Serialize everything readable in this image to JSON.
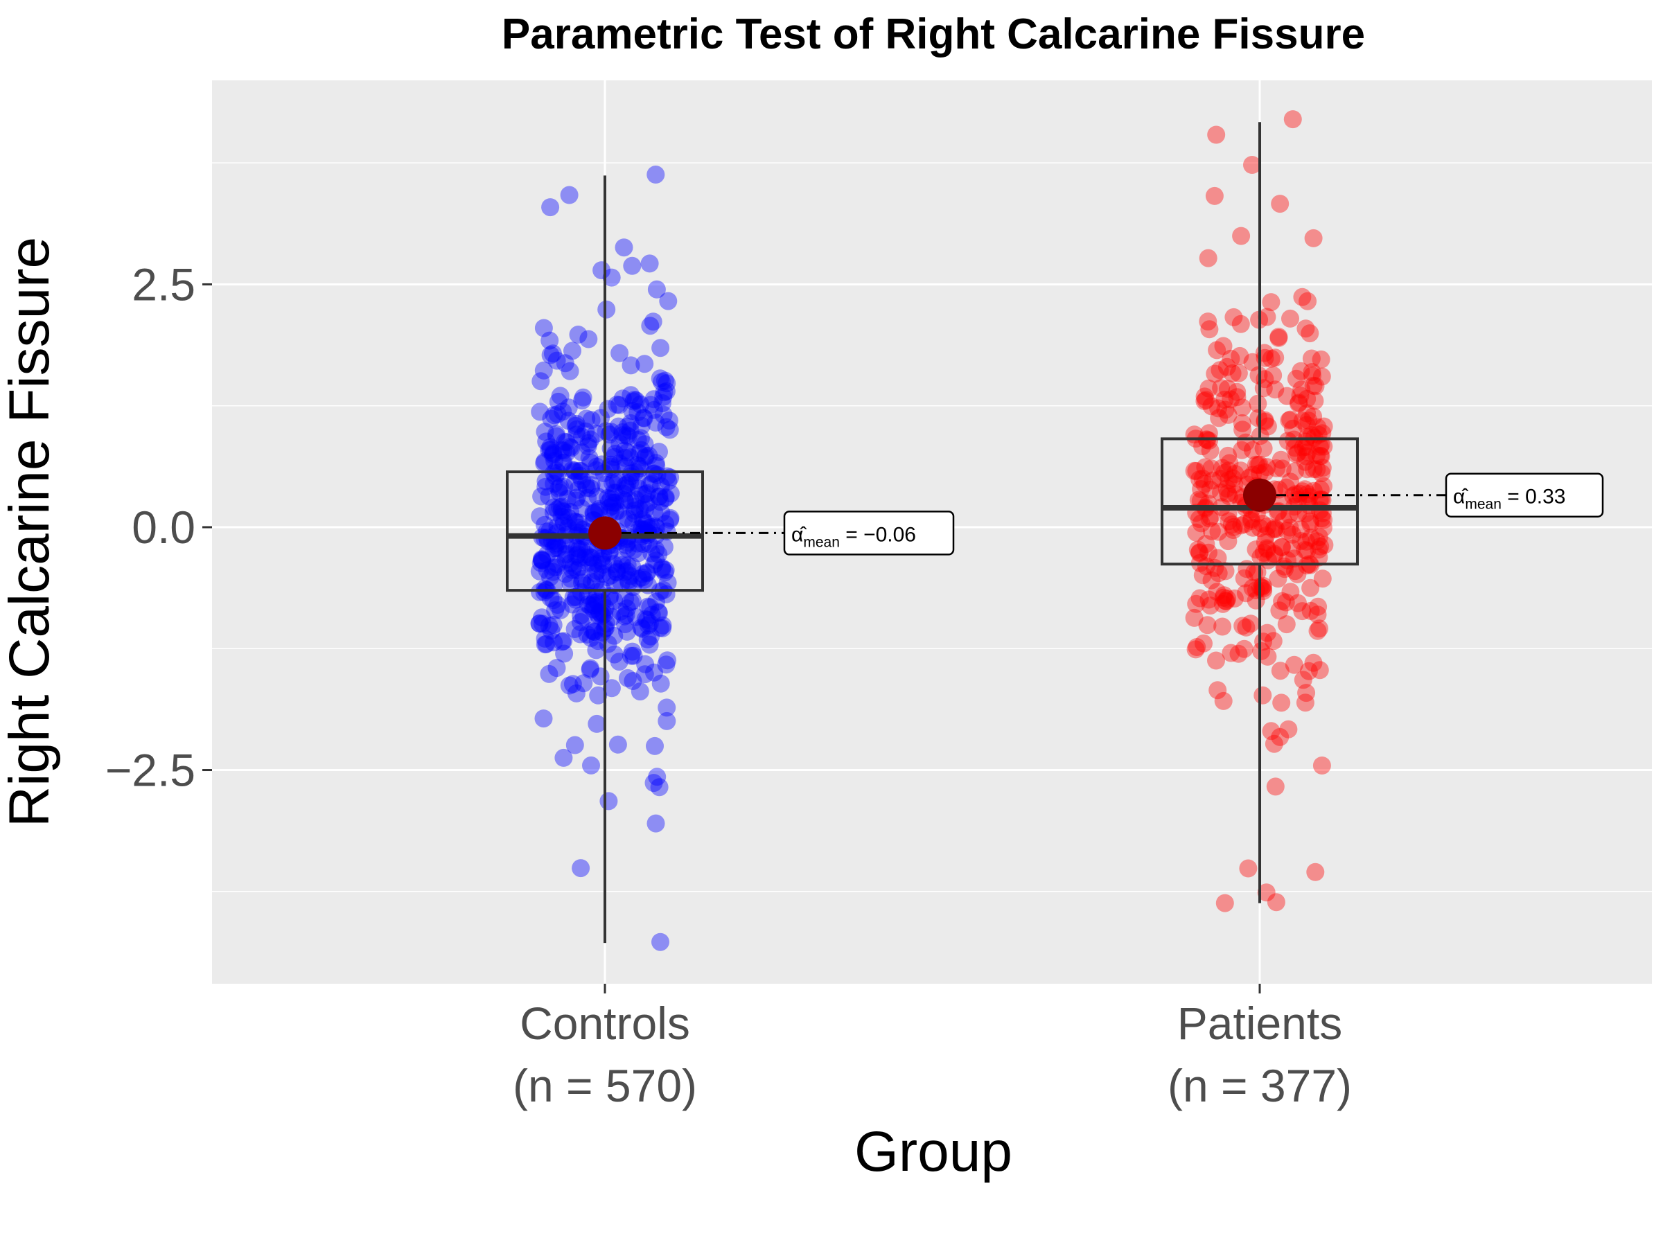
{
  "chart_data": {
    "type": "box",
    "title": "Parametric Test of Right Calcarine Fissure",
    "xlabel": "Group",
    "ylabel": "Right Calcarine Fissure",
    "ylim": [
      -4.7,
      4.6
    ],
    "yticks": [
      -2.5,
      0.0,
      2.5
    ],
    "y_tick_labels": [
      "−2.5",
      "0.0",
      "2.5"
    ],
    "grid": true,
    "legend": "none",
    "categories": [
      "Controls",
      "Patients"
    ],
    "category_labels": [
      {
        "name": "Controls",
        "n": "(n = 570)"
      },
      {
        "name": "Patients",
        "n": "(n = 377)"
      }
    ],
    "boxes": [
      {
        "group": "Controls",
        "n": 570,
        "whisker_low": -4.28,
        "q1": -0.65,
        "median": -0.09,
        "q3": 0.57,
        "whisker_high": 3.62,
        "mean": -0.06,
        "mean_label": "−−0.06",
        "mean_label_value": "−0.06",
        "color": "#0000ff"
      },
      {
        "group": "Patients",
        "n": 377,
        "whisker_low": -3.87,
        "q1": -0.38,
        "median": 0.2,
        "q3": 0.91,
        "whisker_high": 4.17,
        "mean": 0.33,
        "mean_label_value": "0.33",
        "color": "#ff0000"
      }
    ],
    "mean_label_prefix": "α̂",
    "mean_label_sub": "mean",
    "outliers_shown": [
      {
        "group": "Controls",
        "y": 3.63
      },
      {
        "group": "Controls",
        "y": 3.42
      },
      {
        "group": "Controls",
        "y": 2.88
      },
      {
        "group": "Controls",
        "y": 2.69
      },
      {
        "group": "Controls",
        "y": 2.57
      },
      {
        "group": "Controls",
        "y": -2.57
      },
      {
        "group": "Controls",
        "y": -2.82
      },
      {
        "group": "Controls",
        "y": -3.05
      },
      {
        "group": "Controls",
        "y": -3.51
      },
      {
        "group": "Controls",
        "y": -4.27
      },
      {
        "group": "Patients",
        "y": 4.2
      },
      {
        "group": "Patients",
        "y": 4.04
      },
      {
        "group": "Patients",
        "y": 3.73
      },
      {
        "group": "Patients",
        "y": 3.41
      },
      {
        "group": "Patients",
        "y": 3.33
      },
      {
        "group": "Patients",
        "y": -3.55
      },
      {
        "group": "Patients",
        "y": -3.76
      },
      {
        "group": "Patients",
        "y": -3.86
      },
      {
        "group": "Patients",
        "y": -3.87
      },
      {
        "group": "Patients",
        "y": -2.67
      },
      {
        "group": "Patients",
        "y": -2.23
      },
      {
        "group": "Patients",
        "y": -2.16
      }
    ]
  },
  "colors": {
    "panel_bg": "#ebebeb",
    "grid": "#ffffff",
    "box_line": "#333333",
    "mean_point": "#8b0000"
  }
}
